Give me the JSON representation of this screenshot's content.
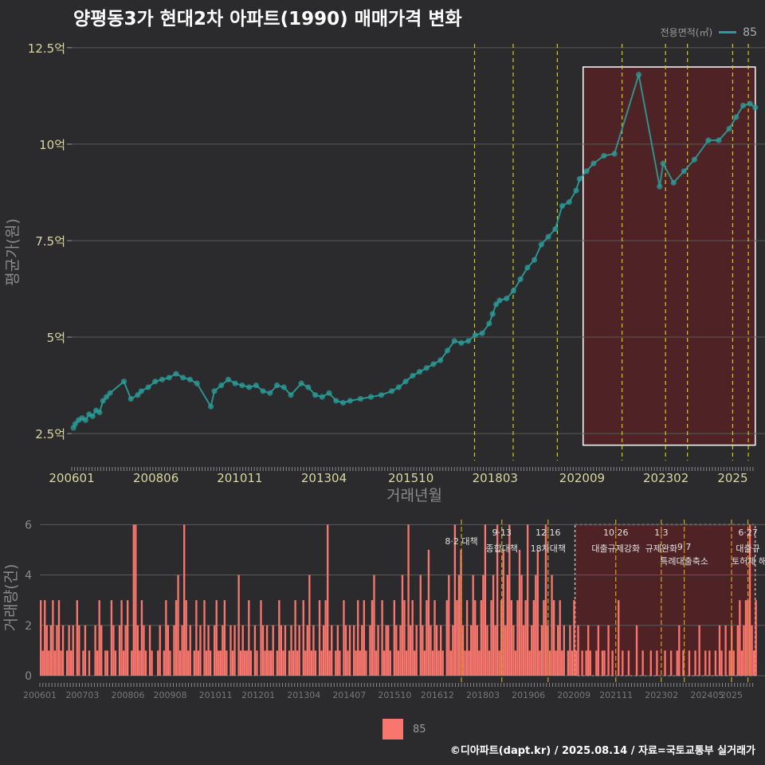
{
  "title": "양평동3가 현대2차 아파트(1990) 매매가격 변화",
  "legend": {
    "title": "전용면적(㎡)",
    "item": "85",
    "bottom_item": "85"
  },
  "footer": "©디아파트(dapt.kr) / 2025.08.14 / 자료=국토교통부 실거래가",
  "colors": {
    "background": "#2b2b2d",
    "price": "#2a9d9a",
    "volume": "#f8766d",
    "policy": "#d4c81e",
    "policy_bar": "#d4a020",
    "highlight": "#5c2224"
  },
  "chart_data": [
    {
      "type": "line",
      "xlabel": "거래년월",
      "ylabel": "평균가(원)",
      "x_ticks": [
        "200601",
        "200806",
        "201011",
        "201304",
        "201510",
        "201803",
        "202009",
        "202302",
        "2025"
      ],
      "y_ticks": [
        "2.5억",
        "5억",
        "7.5억",
        "10억",
        "12.5억"
      ],
      "y_tick_values": [
        2.5,
        5,
        7.5,
        10,
        12.5
      ],
      "ylim": [
        1.8,
        12.6
      ],
      "xlim": [
        2006.0,
        2025.7
      ],
      "grid": true,
      "series": [
        {
          "name": "85",
          "unit": "억",
          "points": [
            [
              2006.05,
              2.65
            ],
            [
              2006.1,
              2.75
            ],
            [
              2006.2,
              2.85
            ],
            [
              2006.3,
              2.9
            ],
            [
              2006.4,
              2.85
            ],
            [
              2006.5,
              3.0
            ],
            [
              2006.6,
              2.95
            ],
            [
              2006.7,
              3.1
            ],
            [
              2006.8,
              3.05
            ],
            [
              2006.9,
              3.35
            ],
            [
              2007.0,
              3.45
            ],
            [
              2007.1,
              3.55
            ],
            [
              2007.5,
              3.85
            ],
            [
              2007.7,
              3.4
            ],
            [
              2007.9,
              3.5
            ],
            [
              2008.0,
              3.6
            ],
            [
              2008.2,
              3.7
            ],
            [
              2008.4,
              3.85
            ],
            [
              2008.6,
              3.9
            ],
            [
              2008.8,
              3.95
            ],
            [
              2009.0,
              4.05
            ],
            [
              2009.2,
              3.95
            ],
            [
              2009.4,
              3.9
            ],
            [
              2009.6,
              3.8
            ],
            [
              2010.0,
              3.2
            ],
            [
              2010.1,
              3.6
            ],
            [
              2010.3,
              3.75
            ],
            [
              2010.5,
              3.9
            ],
            [
              2010.7,
              3.8
            ],
            [
              2010.9,
              3.75
            ],
            [
              2011.1,
              3.7
            ],
            [
              2011.3,
              3.75
            ],
            [
              2011.5,
              3.6
            ],
            [
              2011.7,
              3.55
            ],
            [
              2011.9,
              3.75
            ],
            [
              2012.1,
              3.7
            ],
            [
              2012.3,
              3.5
            ],
            [
              2012.6,
              3.8
            ],
            [
              2012.8,
              3.7
            ],
            [
              2013.0,
              3.5
            ],
            [
              2013.2,
              3.45
            ],
            [
              2013.4,
              3.55
            ],
            [
              2013.6,
              3.35
            ],
            [
              2013.8,
              3.3
            ],
            [
              2014.0,
              3.35
            ],
            [
              2014.3,
              3.4
            ],
            [
              2014.6,
              3.45
            ],
            [
              2014.9,
              3.5
            ],
            [
              2015.2,
              3.6
            ],
            [
              2015.4,
              3.7
            ],
            [
              2015.6,
              3.85
            ],
            [
              2015.8,
              4.0
            ],
            [
              2016.0,
              4.1
            ],
            [
              2016.2,
              4.2
            ],
            [
              2016.4,
              4.3
            ],
            [
              2016.6,
              4.4
            ],
            [
              2016.8,
              4.65
            ],
            [
              2017.0,
              4.9
            ],
            [
              2017.2,
              4.85
            ],
            [
              2017.4,
              4.9
            ],
            [
              2017.6,
              5.05
            ],
            [
              2017.8,
              5.1
            ],
            [
              2018.0,
              5.35
            ],
            [
              2018.1,
              5.6
            ],
            [
              2018.2,
              5.85
            ],
            [
              2018.3,
              5.95
            ],
            [
              2018.5,
              6.0
            ],
            [
              2018.7,
              6.2
            ],
            [
              2018.9,
              6.5
            ],
            [
              2019.1,
              6.8
            ],
            [
              2019.3,
              7.0
            ],
            [
              2019.5,
              7.4
            ],
            [
              2019.7,
              7.6
            ],
            [
              2019.9,
              7.8
            ],
            [
              2020.1,
              8.4
            ],
            [
              2020.3,
              8.5
            ],
            [
              2020.5,
              8.8
            ],
            [
              2020.6,
              9.1
            ],
            [
              2020.8,
              9.3
            ],
            [
              2021.0,
              9.5
            ],
            [
              2021.3,
              9.7
            ],
            [
              2021.6,
              9.75
            ],
            [
              2022.3,
              11.8
            ],
            [
              2022.9,
              8.9
            ],
            [
              2023.0,
              9.5
            ],
            [
              2023.3,
              9.0
            ],
            [
              2023.6,
              9.3
            ],
            [
              2023.9,
              9.6
            ],
            [
              2024.3,
              10.1
            ],
            [
              2024.6,
              10.1
            ],
            [
              2024.9,
              10.4
            ],
            [
              2025.1,
              10.7
            ],
            [
              2025.3,
              11.0
            ],
            [
              2025.5,
              11.05
            ],
            [
              2025.65,
              10.95
            ]
          ]
        }
      ],
      "policy_lines": [
        2017.58,
        2018.69,
        2019.96,
        2021.82,
        2023.07,
        2023.7,
        2025.0,
        2025.45
      ],
      "highlight_range": [
        2020.7,
        2025.65
      ]
    },
    {
      "type": "bar",
      "xlabel": "",
      "ylabel": "거래량(건)",
      "x_ticks": [
        "200601",
        "200703",
        "200806",
        "200908",
        "201011",
        "201201",
        "201304",
        "201407",
        "201510",
        "201612",
        "201803",
        "201906",
        "202009",
        "202111",
        "202302",
        "202405",
        "2025"
      ],
      "y_ticks": [
        "0",
        "2",
        "4",
        "6"
      ],
      "y_tick_values": [
        0,
        2,
        4,
        6
      ],
      "ylim": [
        0,
        6.2
      ],
      "xlim": [
        2006.0,
        2025.7
      ],
      "grid": true,
      "series": [
        {
          "name": "85",
          "values": [
            3,
            1,
            3,
            2,
            1,
            2,
            3,
            1,
            2,
            3,
            1,
            2,
            0,
            1,
            2,
            1,
            2,
            0,
            3,
            2,
            0,
            1,
            2,
            0,
            1,
            0,
            0,
            2,
            1,
            3,
            2,
            0,
            1,
            1,
            0,
            3,
            2,
            1,
            0,
            2,
            3,
            1,
            2,
            3,
            0,
            1,
            6,
            6,
            2,
            1,
            3,
            2,
            1,
            0,
            2,
            1,
            0,
            0,
            1,
            2,
            0,
            1,
            3,
            2,
            1,
            0,
            2,
            3,
            4,
            1,
            2,
            6,
            3,
            1,
            2,
            0,
            1,
            3,
            1,
            2,
            0,
            3,
            1,
            2,
            1,
            0,
            2,
            3,
            1,
            1,
            2,
            3,
            1,
            0,
            2,
            1,
            2,
            0,
            4,
            1,
            2,
            1,
            1,
            3,
            1,
            0,
            2,
            1,
            0,
            3,
            2,
            1,
            2,
            1,
            1,
            2,
            0,
            1,
            3,
            2,
            1,
            2,
            0,
            1,
            2,
            1,
            3,
            1,
            2,
            0,
            3,
            1,
            2,
            4,
            1,
            2,
            1,
            0,
            3,
            1,
            2,
            3,
            6,
            1,
            2,
            0,
            1,
            2,
            1,
            0,
            3,
            2,
            1,
            2,
            0,
            2,
            1,
            3,
            1,
            2,
            3,
            1,
            0,
            2,
            3,
            4,
            1,
            2,
            0,
            3,
            1,
            2,
            2,
            1,
            0,
            3,
            2,
            1,
            2,
            4,
            3,
            1,
            6,
            2,
            3,
            1,
            2,
            0,
            4,
            2,
            1,
            3,
            5,
            2,
            1,
            3,
            2,
            1,
            2,
            1,
            0,
            3,
            4,
            1,
            2,
            6,
            3,
            4,
            5,
            2,
            1,
            3,
            1,
            2,
            4,
            3,
            2,
            1,
            3,
            4,
            6,
            2,
            1,
            3,
            4,
            2,
            6,
            1,
            3,
            5,
            2,
            4,
            6,
            3,
            2,
            1,
            3,
            5,
            4,
            2,
            3,
            6,
            1,
            2,
            3,
            4,
            5,
            1,
            2,
            3,
            6,
            2,
            1,
            4,
            3,
            1,
            2,
            3,
            1,
            2,
            0,
            1,
            2,
            1,
            3,
            1,
            2,
            0,
            1,
            0,
            1,
            2,
            1,
            0,
            0,
            1,
            2,
            0,
            1,
            1,
            0,
            2,
            0,
            1,
            0,
            0,
            3,
            0,
            1,
            0,
            0,
            1,
            0,
            0,
            0,
            2,
            0,
            0,
            1,
            0,
            0,
            0,
            1,
            0,
            0,
            1,
            0,
            0,
            0,
            1,
            0,
            0,
            1,
            0,
            0,
            1,
            2,
            0,
            1,
            0,
            0,
            1,
            0,
            0,
            1,
            0,
            2,
            0,
            0,
            1,
            0,
            1,
            0,
            0,
            1,
            0,
            2,
            1,
            0,
            2,
            0,
            1,
            2,
            1,
            0,
            2,
            3,
            1,
            2,
            3,
            3,
            6,
            2,
            1,
            3
          ]
        }
      ],
      "policy_lines": [
        2017.58,
        2018.69,
        2019.96,
        2021.82,
        2023.07,
        2023.7,
        2025.0,
        2025.45
      ],
      "highlight_range": [
        2020.7,
        2025.65
      ],
      "annotations": [
        {
          "date": "8·2 대책",
          "label": "",
          "x": 2017.58
        },
        {
          "date": "9·13",
          "label": "종합대책",
          "x": 2018.69
        },
        {
          "date": "12·16",
          "label": "18차대책",
          "x": 2019.96
        },
        {
          "date": "10·26",
          "label": "대출규제강화",
          "x": 2021.82
        },
        {
          "date": "1·3",
          "label": "규제완화",
          "x": 2023.07
        },
        {
          "date": "",
          "label": "9·7",
          "x": 2023.7
        },
        {
          "date": "",
          "label": "특례대출축소",
          "x": 2023.7
        },
        {
          "date": "",
          "label": "토허제 해제",
          "x": 2025.0
        },
        {
          "date": "6·27",
          "label": "대출규",
          "x": 2025.45
        }
      ]
    }
  ]
}
